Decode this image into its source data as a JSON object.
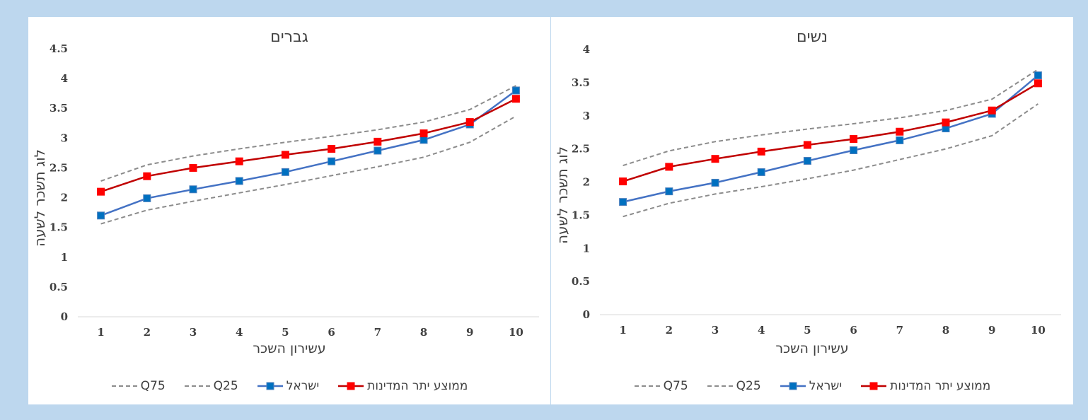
{
  "chart_data": [
    {
      "type": "line",
      "title": "גברים",
      "xlabel": "עשירון השכר",
      "ylabel": "לוג תשכר לשעה",
      "categories": [
        "1",
        "2",
        "3",
        "4",
        "5",
        "6",
        "7",
        "8",
        "9",
        "10"
      ],
      "ylim": [
        0,
        4.5
      ],
      "yticks": [
        "0",
        "0.5",
        "1",
        "1.5",
        "2",
        "2.5",
        "3",
        "3.5",
        "4",
        "4.5"
      ],
      "legend_position": "bottom",
      "series": [
        {
          "name": "Q75",
          "color": "#8c8c8c",
          "style": "dashed",
          "values": [
            2.28,
            2.55,
            2.7,
            2.82,
            2.93,
            3.03,
            3.14,
            3.27,
            3.48,
            3.88
          ]
        },
        {
          "name": "Q25",
          "color": "#8c8c8c",
          "style": "dashed",
          "values": [
            1.56,
            1.79,
            1.94,
            2.08,
            2.22,
            2.37,
            2.52,
            2.68,
            2.93,
            3.37
          ]
        },
        {
          "name": "ישראל",
          "color": "#4472c4",
          "marker_color": "#0070c0",
          "style": "solid",
          "values": [
            1.7,
            1.99,
            2.14,
            2.28,
            2.43,
            2.61,
            2.79,
            2.97,
            3.23,
            3.8
          ]
        },
        {
          "name": "ממוצע יתר המדינות",
          "color": "#c00000",
          "marker_color": "#ff0000",
          "style": "solid",
          "values": [
            2.1,
            2.36,
            2.5,
            2.61,
            2.72,
            2.82,
            2.94,
            3.08,
            3.27,
            3.66
          ]
        }
      ]
    },
    {
      "type": "line",
      "title": "נשים",
      "xlabel": "עשירון השכר",
      "ylabel": "לוג תשכר לשעה",
      "categories": [
        "1",
        "2",
        "3",
        "4",
        "5",
        "6",
        "7",
        "8",
        "9",
        "10"
      ],
      "ylim": [
        0,
        4
      ],
      "yticks": [
        "0",
        "0.5",
        "1",
        "1.5",
        "2",
        "2.5",
        "3",
        "3.5",
        "4"
      ],
      "legend_position": "bottom",
      "series": [
        {
          "name": "Q75",
          "color": "#8c8c8c",
          "style": "dashed",
          "values": [
            2.25,
            2.47,
            2.61,
            2.71,
            2.8,
            2.88,
            2.97,
            3.08,
            3.25,
            3.7
          ]
        },
        {
          "name": "Q25",
          "color": "#8c8c8c",
          "style": "dashed",
          "values": [
            1.48,
            1.68,
            1.82,
            1.93,
            2.05,
            2.18,
            2.34,
            2.5,
            2.7,
            3.18
          ]
        },
        {
          "name": "ישראל",
          "color": "#4472c4",
          "marker_color": "#0070c0",
          "style": "solid",
          "values": [
            1.7,
            1.86,
            1.99,
            2.15,
            2.32,
            2.48,
            2.63,
            2.81,
            3.03,
            3.61
          ]
        },
        {
          "name": "ממוצע יתר המדינות",
          "color": "#c00000",
          "marker_color": "#ff0000",
          "style": "solid",
          "values": [
            2.01,
            2.23,
            2.35,
            2.46,
            2.56,
            2.65,
            2.76,
            2.9,
            3.08,
            3.49
          ]
        }
      ]
    }
  ]
}
